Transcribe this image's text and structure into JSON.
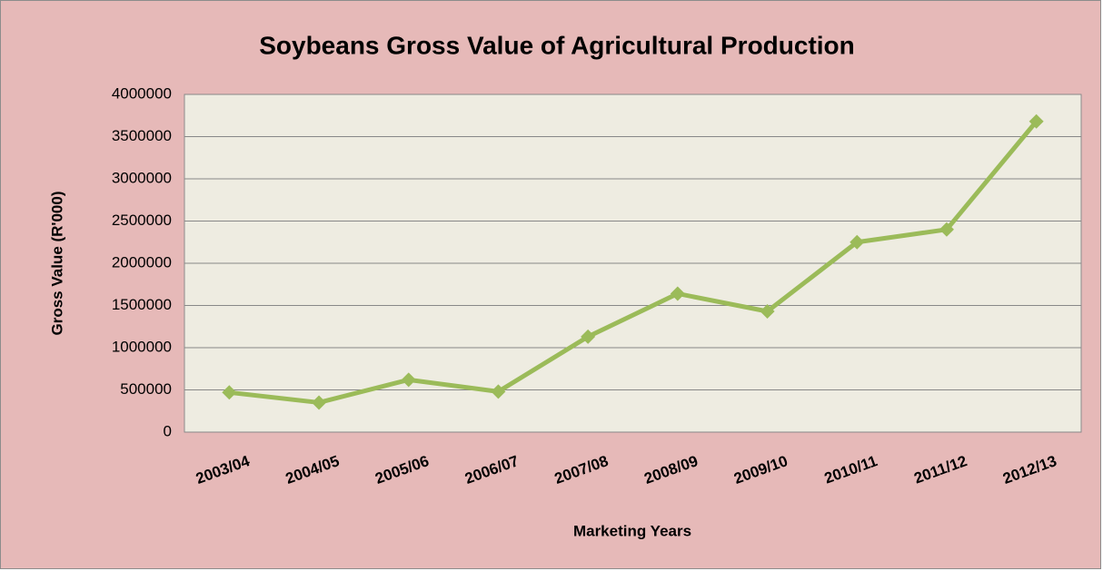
{
  "chart_data": {
    "type": "line",
    "title": "Soybeans Gross Value of Agricultural Production",
    "x_label": "Marketing Years",
    "y_label": "Gross Value (R'000)",
    "categories": [
      "2003/04",
      "2004/05",
      "2005/06",
      "2006/07",
      "2007/08",
      "2008/09",
      "2009/10",
      "2010/11",
      "2011/12",
      "2012/13"
    ],
    "values": [
      470000,
      350000,
      620000,
      480000,
      1130000,
      1640000,
      1430000,
      2250000,
      2400000,
      3680000
    ],
    "color": "#9bbb59",
    "ylim": [
      0,
      4000000
    ],
    "yticks": [
      0,
      500000,
      1000000,
      1500000,
      2000000,
      2500000,
      3000000,
      3500000,
      4000000
    ],
    "grid": true
  }
}
